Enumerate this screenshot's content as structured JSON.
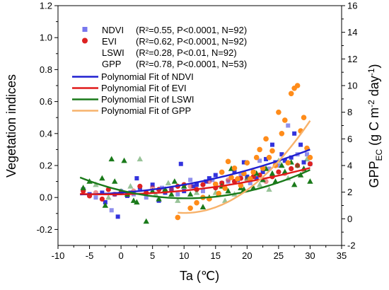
{
  "chart_data": {
    "type": "scatter",
    "xlabel": "Ta (℃)",
    "ylabel": "Vegetation indices",
    "y2label": "GPP",
    "y2label_sub": "EC",
    "y2label_unit": " (g C m",
    "y2label_unit_sup1": "-2",
    "y2label_unit_mid": " day",
    "y2label_unit_sup2": "-1",
    "y2label_unit_end": ")",
    "xlim": [
      -10,
      35
    ],
    "ylim": [
      -0.3,
      1.2
    ],
    "y2lim": [
      -2,
      16
    ],
    "x_ticks": [
      "-10",
      "-5",
      "0",
      "5",
      "10",
      "15",
      "20",
      "25",
      "30",
      "35"
    ],
    "y_ticks": [
      "-0.2",
      "0.0",
      "0.2",
      "0.4",
      "0.6",
      "0.8",
      "1.0",
      "1.2"
    ],
    "y2_ticks": [
      "-2",
      "0",
      "2",
      "4",
      "6",
      "8",
      "10",
      "12",
      "14",
      "16"
    ],
    "colors": {
      "ndvi": "#3333dd",
      "evi": "#dd2222",
      "lswi": "#1a7a1a",
      "gpp": "#ff8c1a",
      "fit_ndvi": "#1f1fd0",
      "fit_evi": "#e01a1a",
      "fit_lswi": "#1a7a1a",
      "fit_gpp": "#f7b26b"
    },
    "legend_entries": [
      {
        "name": "NDVI",
        "stats": "(R²=0.55, P<0.0001, N=92)"
      },
      {
        "name": "EVI",
        "stats": "(R²=0.62, P<0.0001, N=92)"
      },
      {
        "name": "LSWI",
        "stats": "(R²=0.28, P<0.01,      N=92)"
      },
      {
        "name": "GPP",
        "stats": "(R²=0.78, P<0.0001, N=53)"
      }
    ],
    "fit_labels": [
      "Polynomial Fit of NDVI",
      "Polynomial Fit of EVI",
      "Polynomial Fit of LSWI",
      "Polynomial Fit of GPP"
    ],
    "series": [
      {
        "name": "NDVI",
        "axis": "left",
        "points": [
          [
            -6,
            0.05
          ],
          [
            -5,
            0.02
          ],
          [
            -4,
            0.0
          ],
          [
            -3,
            0.03
          ],
          [
            -2.5,
            -0.03
          ],
          [
            -1.5,
            -0.08
          ],
          [
            -1,
            0.02
          ],
          [
            -0.5,
            -0.12
          ],
          [
            0,
            0.04
          ],
          [
            1,
            0.01
          ],
          [
            1.5,
            0.03
          ],
          [
            2,
            0.02
          ],
          [
            2.5,
            0.12
          ],
          [
            3,
            0.06
          ],
          [
            4,
            0.0
          ],
          [
            5,
            0.08
          ],
          [
            6,
            -0.02
          ],
          [
            6.5,
            0.06
          ],
          [
            7,
            0.03
          ],
          [
            8,
            0.05
          ],
          [
            9,
            0.02
          ],
          [
            9.5,
            0.21
          ],
          [
            10,
            0.04
          ],
          [
            11,
            0.11
          ],
          [
            11.5,
            0.07
          ],
          [
            12,
            0.08
          ],
          [
            13,
            0.04
          ],
          [
            13.5,
            0.1
          ],
          [
            14,
            0.12
          ],
          [
            14.5,
            0.11
          ],
          [
            15,
            0.14
          ],
          [
            16,
            0.09
          ],
          [
            17,
            0.1
          ],
          [
            18,
            0.16
          ],
          [
            18.5,
            0.11
          ],
          [
            19,
            0.14
          ],
          [
            19.5,
            0.22
          ],
          [
            20,
            0.13
          ],
          [
            20.5,
            0.09
          ],
          [
            21,
            0.16
          ],
          [
            21.5,
            0.12
          ],
          [
            22,
            0.23
          ],
          [
            22.5,
            0.16
          ],
          [
            23,
            0.24
          ],
          [
            23.5,
            0.18
          ],
          [
            24,
            0.33
          ],
          [
            24.5,
            0.22
          ],
          [
            25,
            0.2
          ],
          [
            25.5,
            0.27
          ],
          [
            26,
            0.23
          ],
          [
            26.5,
            0.45
          ],
          [
            27,
            0.25
          ],
          [
            27.5,
            0.4
          ],
          [
            28,
            0.27
          ],
          [
            28.5,
            0.33
          ],
          [
            29,
            0.22
          ],
          [
            29.5,
            0.27
          ],
          [
            30,
            0.21
          ]
        ]
      },
      {
        "name": "EVI",
        "axis": "left",
        "points": [
          [
            -6,
            0.04
          ],
          [
            -5,
            0.01
          ],
          [
            -4,
            0.03
          ],
          [
            -3,
            -0.01
          ],
          [
            -2,
            0.05
          ],
          [
            -1,
            0.02
          ],
          [
            0,
            0.03
          ],
          [
            1,
            0.02
          ],
          [
            2,
            0.04
          ],
          [
            3,
            0.07
          ],
          [
            4,
            0.03
          ],
          [
            5,
            0.06
          ],
          [
            6,
            0.05
          ],
          [
            7,
            0.04
          ],
          [
            8,
            0.05
          ],
          [
            9,
            0.07
          ],
          [
            10,
            0.08
          ],
          [
            11,
            0.07
          ],
          [
            12,
            0.05
          ],
          [
            13,
            0.08
          ],
          [
            14,
            0.1
          ],
          [
            15,
            0.06
          ],
          [
            16,
            0.09
          ],
          [
            17,
            0.11
          ],
          [
            18,
            0.1
          ],
          [
            19,
            0.12
          ],
          [
            20,
            0.11
          ],
          [
            21,
            0.13
          ],
          [
            22,
            0.14
          ],
          [
            23,
            0.1
          ],
          [
            24,
            0.13
          ],
          [
            25,
            0.16
          ],
          [
            26,
            0.15
          ],
          [
            27,
            0.18
          ],
          [
            28,
            0.2
          ],
          [
            29,
            0.17
          ],
          [
            30,
            0.21
          ]
        ]
      },
      {
        "name": "LSWI",
        "axis": "left",
        "points": [
          [
            -6,
            0.06
          ],
          [
            -5,
            0.1
          ],
          [
            -4,
            0.08
          ],
          [
            -3,
            0.12
          ],
          [
            -2.5,
            -0.05
          ],
          [
            -2,
            0.0
          ],
          [
            -1.5,
            0.24
          ],
          [
            -1,
            0.1
          ],
          [
            0,
            0.04
          ],
          [
            0.5,
            0.23
          ],
          [
            1,
            0.02
          ],
          [
            1.5,
            0.07
          ],
          [
            2,
            -0.02
          ],
          [
            2.5,
            -0.03
          ],
          [
            3,
            0.24
          ],
          [
            4,
            -0.15
          ],
          [
            5,
            0.04
          ],
          [
            5.5,
            0.02
          ],
          [
            6,
            -0.01
          ],
          [
            7,
            0.05
          ],
          [
            7.5,
            0.09
          ],
          [
            8,
            0.02
          ],
          [
            8.5,
            0.1
          ],
          [
            9,
            -0.02
          ],
          [
            10,
            0.07
          ],
          [
            11,
            0.02
          ],
          [
            12,
            0.03
          ],
          [
            13,
            -0.06
          ],
          [
            14,
            0.0
          ],
          [
            15,
            0.03
          ],
          [
            15.5,
            0.02
          ],
          [
            16,
            0.07
          ],
          [
            16.5,
            -0.02
          ],
          [
            17,
            0.04
          ],
          [
            17.5,
            0.18
          ],
          [
            18,
            0.02
          ],
          [
            19,
            0.06
          ],
          [
            19.5,
            0.05
          ],
          [
            20,
            0.12
          ],
          [
            21,
            0.06
          ],
          [
            21.5,
            0.15
          ],
          [
            22,
            0.08
          ],
          [
            22.5,
            0.11
          ],
          [
            23,
            0.18
          ],
          [
            23.5,
            0.05
          ],
          [
            24,
            0.15
          ],
          [
            24.5,
            0.1
          ],
          [
            25,
            0.23
          ],
          [
            25.5,
            0.2
          ],
          [
            26,
            0.16
          ],
          [
            26.5,
            0.12
          ],
          [
            27,
            0.22
          ],
          [
            27.5,
            0.08
          ],
          [
            28,
            0.2
          ],
          [
            28.5,
            0.14
          ],
          [
            29,
            0.18
          ],
          [
            29.5,
            0.24
          ],
          [
            30,
            0.1
          ]
        ]
      },
      {
        "name": "GPP",
        "axis": "right",
        "points": [
          [
            9,
            0.1
          ],
          [
            11,
            0.8
          ],
          [
            12,
            1.2
          ],
          [
            13,
            1.6
          ],
          [
            14,
            1.5
          ],
          [
            15,
            2.6
          ],
          [
            15.5,
            1.9
          ],
          [
            16,
            3.5
          ],
          [
            16.5,
            2.3
          ],
          [
            17,
            4.3
          ],
          [
            17.5,
            3.1
          ],
          [
            18,
            3.8
          ],
          [
            18.5,
            3.0
          ],
          [
            19,
            2.5
          ],
          [
            19.5,
            3.4
          ],
          [
            20,
            4.2
          ],
          [
            20.5,
            3.0
          ],
          [
            21,
            3.5
          ],
          [
            21.5,
            4.6
          ],
          [
            22,
            5.2
          ],
          [
            22.5,
            3.8
          ],
          [
            23,
            6.0
          ],
          [
            23.5,
            4.6
          ],
          [
            24,
            5.1
          ],
          [
            24.5,
            4.0
          ],
          [
            25,
            8.0
          ],
          [
            25.5,
            6.4
          ],
          [
            26,
            7.4
          ],
          [
            26.5,
            4.2
          ],
          [
            27,
            9.4
          ],
          [
            27.5,
            9.8
          ],
          [
            28,
            10.0
          ],
          [
            28.5,
            6.6
          ],
          [
            29,
            7.6
          ],
          [
            29.5,
            5.3
          ],
          [
            30,
            4.6
          ]
        ]
      }
    ],
    "fits": [
      {
        "name": "NDVI",
        "axis": "left",
        "coef": [
          0.03,
          0.003,
          0.0002
        ],
        "range": [
          -6.5,
          30
        ]
      },
      {
        "name": "EVI",
        "axis": "left",
        "coef": [
          0.02,
          0.0007,
          0.00016
        ],
        "range": [
          -6.5,
          30
        ]
      },
      {
        "name": "LSWI",
        "axis": "left",
        "coef": [
          0.044,
          -0.0095,
          0.00046
        ],
        "range": [
          -6.5,
          30
        ]
      },
      {
        "name": "GPP",
        "axis": "right",
        "coef": [
          2.2,
          -0.35,
          0.0174
        ],
        "range": [
          9,
          30
        ]
      }
    ]
  }
}
